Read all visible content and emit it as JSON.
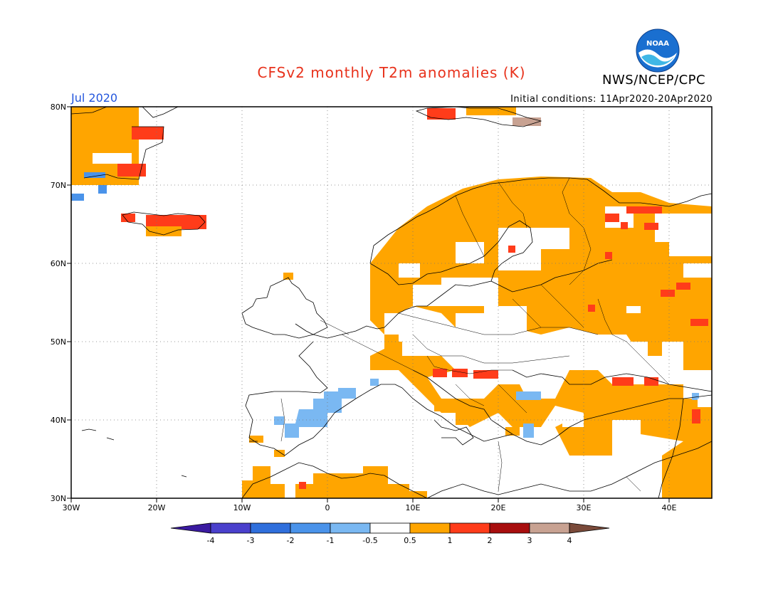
{
  "header": {
    "title": "CFSv2 monthly T2m anomalies (K)",
    "agency": "NWS/NCEP/CPC",
    "logo_text": "NOAA",
    "month": "Jul 2020",
    "initial_conditions": "Initial conditions: 11Apr2020-20Apr2020"
  },
  "map": {
    "lon_labels": [
      "30W",
      "20W",
      "10W",
      "0",
      "10E",
      "20E",
      "30E",
      "40E"
    ],
    "lat_labels": [
      "80N",
      "70N",
      "60N",
      "50N",
      "40N",
      "30N"
    ]
  },
  "legend": {
    "labels": [
      "-4",
      "-3",
      "-2",
      "-1",
      "-0.5",
      "0.5",
      "1",
      "2",
      "3",
      "4"
    ],
    "colors": [
      "#3a1aa0",
      "#4a40cc",
      "#2f6fdc",
      "#4a93ea",
      "#7ab8f2",
      "#ffffff",
      "#ffa500",
      "#ff3c1a",
      "#a80e0e",
      "#c8a292",
      "#7a4a3a"
    ]
  }
}
